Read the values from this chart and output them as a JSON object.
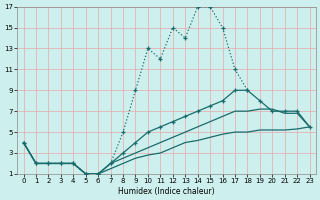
{
  "xlabel": "Humidex (Indice chaleur)",
  "bg_color": "#cdf0ee",
  "grid_color": "#e8a8a8",
  "line_color": "#1a6b6b",
  "xlim": [
    -0.5,
    23.5
  ],
  "ylim": [
    1,
    17
  ],
  "xticks": [
    0,
    1,
    2,
    3,
    4,
    5,
    6,
    7,
    8,
    9,
    10,
    11,
    12,
    13,
    14,
    15,
    16,
    17,
    18,
    19,
    20,
    21,
    22,
    23
  ],
  "yticks": [
    1,
    3,
    5,
    7,
    9,
    11,
    13,
    15,
    17
  ],
  "curve1_x": [
    0,
    1,
    2,
    3,
    4,
    5,
    6,
    7,
    8,
    9,
    10,
    11,
    12,
    13,
    14,
    15,
    16,
    17,
    18
  ],
  "curve1_y": [
    4,
    2,
    2,
    2,
    2,
    1,
    1,
    2,
    5,
    9,
    13,
    12,
    15,
    14,
    17,
    17,
    15,
    11,
    9
  ],
  "curve2_x": [
    0,
    1,
    2,
    3,
    4,
    5,
    6,
    7,
    8,
    9,
    10,
    11,
    12,
    13,
    14,
    15,
    16,
    17,
    18,
    19,
    20,
    21,
    22,
    23
  ],
  "curve2_y": [
    4,
    2,
    2,
    2,
    2,
    1,
    1,
    2,
    3,
    4,
    5,
    5.5,
    6,
    6.5,
    7,
    7.5,
    8,
    9,
    9,
    8,
    7,
    7,
    7,
    5.5
  ],
  "curve3_x": [
    0,
    1,
    2,
    3,
    4,
    5,
    6,
    7,
    8,
    9,
    10,
    11,
    12,
    13,
    14,
    15,
    16,
    17,
    18,
    19,
    20,
    21,
    22,
    23
  ],
  "curve3_y": [
    4,
    2,
    2,
    2,
    2,
    1,
    1,
    2,
    2.5,
    3,
    3.5,
    4,
    4.5,
    5,
    5.5,
    6,
    6.5,
    7,
    7,
    7.2,
    7.2,
    6.8,
    6.8,
    5.5
  ],
  "curve4_x": [
    0,
    1,
    2,
    3,
    4,
    5,
    6,
    7,
    8,
    9,
    10,
    11,
    12,
    13,
    14,
    15,
    16,
    17,
    18,
    19,
    20,
    21,
    22,
    23
  ],
  "curve4_y": [
    4,
    2,
    2,
    2,
    2,
    1,
    1,
    1.5,
    2,
    2.5,
    2.8,
    3,
    3.5,
    4,
    4.2,
    4.5,
    4.8,
    5,
    5,
    5.2,
    5.2,
    5.2,
    5.3,
    5.5
  ]
}
